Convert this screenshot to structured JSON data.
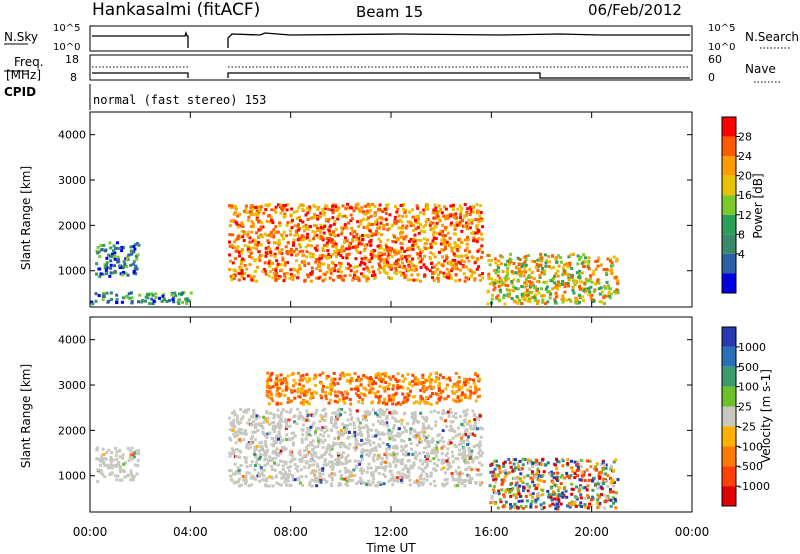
{
  "header": {
    "radar": "Hankasalmi (fitACF)",
    "beam": "Beam 15",
    "date": "06/Feb/2012"
  },
  "top_panels": {
    "nsky_label": "N.Sky",
    "nsky_ticks": [
      "10^5",
      "10^0"
    ],
    "nsearch_label": "N.Search",
    "nsearch_ticks": [
      "10^5",
      "10^0"
    ],
    "freq_label_1": "Freq.",
    "freq_label_2": "[MHz]",
    "freq_ticks": [
      "18",
      "8"
    ],
    "nave_label": "Nave",
    "nave_ticks": [
      "60",
      "0"
    ],
    "cpid_label": "CPID",
    "cpid_text": "normal (fast stereo) 153"
  },
  "x_axis": {
    "title": "Time UT",
    "ticks": [
      "00:00",
      "04:00",
      "08:00",
      "12:00",
      "16:00",
      "20:00",
      "00:00"
    ]
  },
  "chart_data": [
    {
      "type": "heatmap",
      "title": "",
      "xlabel": "Time UT",
      "ylabel": "Slant Range [km]",
      "xlim": [
        0,
        24
      ],
      "ylim": [
        200,
        4500
      ],
      "x_ticks": [
        "00:00",
        "04:00",
        "08:00",
        "12:00",
        "16:00",
        "20:00",
        "00:00"
      ],
      "y_ticks": [
        "1000",
        "2000",
        "3000",
        "4000"
      ],
      "colorbar": {
        "label": "Power [dB]",
        "ticks": [
          "28",
          "24",
          "20",
          "16",
          "12",
          "8",
          "4"
        ],
        "colors": [
          "#ff0000",
          "#ff5a00",
          "#ff9b00",
          "#e8c200",
          "#7cc92b",
          "#2aa05a",
          "#3a8a6a",
          "#2b60a8",
          "#0000e0"
        ]
      },
      "regions": [
        {
          "name": "early-echo",
          "t_start": 0.2,
          "t_end": 1.9,
          "r_start": 900,
          "r_end": 1650,
          "level": "8-12"
        },
        {
          "name": "near-range",
          "t_start": 0.0,
          "t_end": 4.0,
          "r_start": 300,
          "r_end": 550,
          "level": "4-16"
        },
        {
          "name": "main-arc",
          "t_start": 5.5,
          "t_end": 15.6,
          "r_start": 800,
          "r_end": 2500,
          "level": "20-28"
        },
        {
          "name": "evening-echo",
          "t_start": 15.8,
          "t_end": 21.0,
          "r_start": 300,
          "r_end": 1400,
          "level": "12-24"
        }
      ]
    },
    {
      "type": "heatmap",
      "title": "",
      "xlabel": "Time UT",
      "ylabel": "Slant Range [km]",
      "xlim": [
        0,
        24
      ],
      "ylim": [
        200,
        4500
      ],
      "x_ticks": [
        "00:00",
        "04:00",
        "08:00",
        "12:00",
        "16:00",
        "20:00",
        "00:00"
      ],
      "y_ticks": [
        "1000",
        "2000",
        "3000",
        "4000"
      ],
      "colorbar": {
        "label": "Velocity [m s-1]",
        "ticks": [
          "1000",
          "500",
          "100",
          "25",
          "-25",
          "-100",
          "-500",
          "-1000"
        ],
        "colors": [
          "#2838b0",
          "#2a70b8",
          "#3a9c6a",
          "#6cc028",
          "#c8c8c0",
          "#ffb000",
          "#ff7a00",
          "#ff4000",
          "#e00000"
        ]
      },
      "regions": [
        {
          "name": "ground-scatter-early",
          "t_start": 0.2,
          "t_end": 1.9,
          "r_start": 900,
          "r_end": 1650,
          "level": "-25 to 25"
        },
        {
          "name": "ground-scatter-main",
          "t_start": 5.5,
          "t_end": 15.6,
          "r_start": 800,
          "r_end": 2500,
          "level": "-25 to 25"
        },
        {
          "name": "far-range-orange",
          "t_start": 7.0,
          "t_end": 15.5,
          "r_start": 2600,
          "r_end": 3300,
          "level": "-100 to -500"
        },
        {
          "name": "evening-mixed",
          "t_start": 15.8,
          "t_end": 21.0,
          "r_start": 300,
          "r_end": 1400,
          "level": "-1000 to 1000"
        }
      ]
    }
  ]
}
